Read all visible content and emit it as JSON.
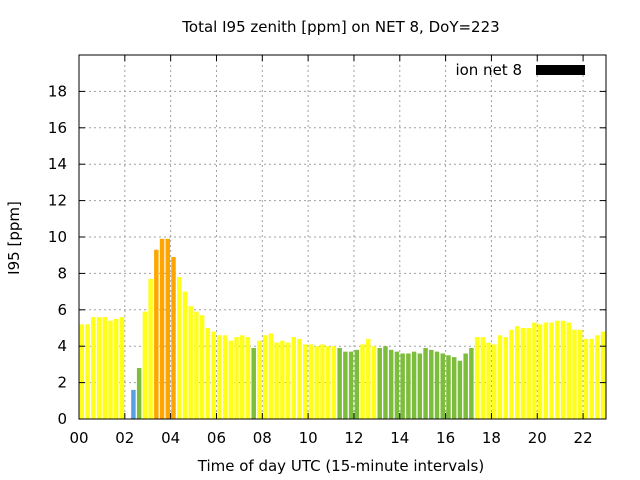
{
  "chart_data": {
    "type": "bar",
    "title": "Total I95 zenith [ppm] on NET 8, DoY=223",
    "xlabel": "Time of day UTC (15-minute intervals)",
    "ylabel": "I95 [ppm]",
    "xlim": [
      0,
      23
    ],
    "ylim": [
      0,
      20
    ],
    "x_ticks": [
      "00",
      "02",
      "04",
      "06",
      "08",
      "10",
      "12",
      "14",
      "16",
      "18",
      "20",
      "22"
    ],
    "y_ticks": [
      "0",
      "2",
      "4",
      "6",
      "8",
      "10",
      "12",
      "14",
      "16",
      "18"
    ],
    "grid": true,
    "legend": {
      "label": "ion net 8",
      "placement": "top-right",
      "color": "#000000"
    },
    "category_colors": {
      "yellow": "#ffff1a",
      "green": "#7cbe3c",
      "orange": "#ffa500",
      "blue": "#5aa0e0"
    },
    "interval_hours": 0.25,
    "values": [
      5.2,
      5.2,
      5.6,
      5.6,
      5.6,
      5.4,
      5.5,
      5.6,
      0,
      1.6,
      2.8,
      5.9,
      7.7,
      9.3,
      9.9,
      9.9,
      8.9,
      7.8,
      7.0,
      6.2,
      5.9,
      5.7,
      5.0,
      4.8,
      4.6,
      4.6,
      4.3,
      4.5,
      4.6,
      4.5,
      3.9,
      4.3,
      4.6,
      4.7,
      4.2,
      4.3,
      4.2,
      4.5,
      4.4,
      4.1,
      4.1,
      4.0,
      4.1,
      4.0,
      4.0,
      3.9,
      3.7,
      3.7,
      3.8,
      4.1,
      4.4,
      4.0,
      3.9,
      4.0,
      3.8,
      3.7,
      3.6,
      3.6,
      3.7,
      3.6,
      3.9,
      3.8,
      3.7,
      3.6,
      3.5,
      3.4,
      3.2,
      3.6,
      3.9,
      4.5,
      4.5,
      4.2,
      4.1,
      4.6,
      4.5,
      4.9,
      5.1,
      5.0,
      5.0,
      5.3,
      5.2,
      5.3,
      5.3,
      5.4,
      5.4,
      5.3,
      4.9,
      4.9,
      4.4,
      4.4,
      4.6,
      4.8
    ],
    "bar_colors": [
      "yellow",
      "yellow",
      "yellow",
      "yellow",
      "yellow",
      "yellow",
      "yellow",
      "yellow",
      "yellow",
      "blue",
      "green",
      "yellow",
      "yellow",
      "orange",
      "orange",
      "orange",
      "orange",
      "yellow",
      "yellow",
      "yellow",
      "yellow",
      "yellow",
      "yellow",
      "yellow",
      "yellow",
      "yellow",
      "yellow",
      "yellow",
      "yellow",
      "yellow",
      "green",
      "yellow",
      "yellow",
      "yellow",
      "yellow",
      "yellow",
      "yellow",
      "yellow",
      "yellow",
      "yellow",
      "yellow",
      "yellow",
      "yellow",
      "yellow",
      "yellow",
      "green",
      "green",
      "green",
      "green",
      "yellow",
      "yellow",
      "yellow",
      "green",
      "green",
      "green",
      "green",
      "green",
      "green",
      "green",
      "green",
      "green",
      "green",
      "green",
      "green",
      "green",
      "green",
      "green",
      "green",
      "green",
      "yellow",
      "yellow",
      "yellow",
      "yellow",
      "yellow",
      "yellow",
      "yellow",
      "yellow",
      "yellow",
      "yellow",
      "yellow",
      "yellow",
      "yellow",
      "yellow",
      "yellow",
      "yellow",
      "yellow",
      "yellow",
      "yellow",
      "yellow",
      "yellow",
      "yellow",
      "yellow"
    ]
  }
}
